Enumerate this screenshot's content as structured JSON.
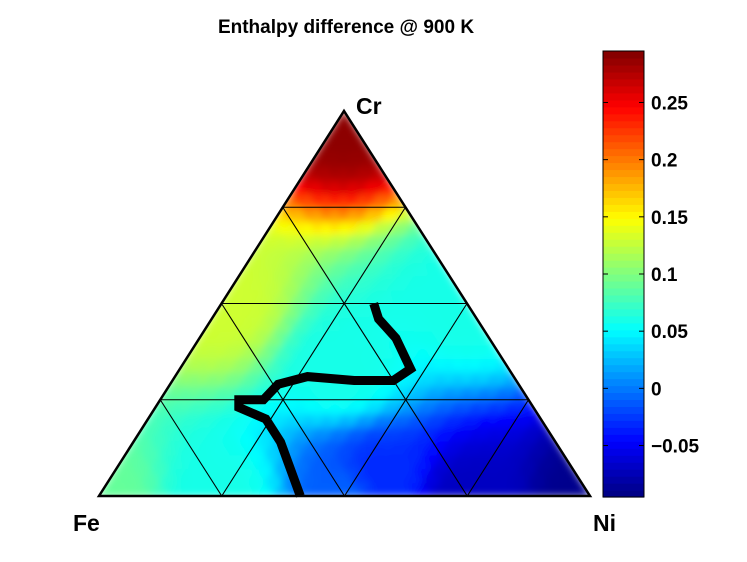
{
  "chart_data": {
    "type": "heatmap",
    "subtype": "ternary",
    "title": "Enthalpy difference @ 900 K",
    "vertices": {
      "top": "Cr",
      "left": "Fe",
      "right": "Ni"
    },
    "grid_divisions": 4,
    "colorbar": {
      "colormap": "jet",
      "range": [
        -0.095,
        0.295
      ],
      "ticks": [
        -0.05,
        0,
        0.05,
        0.1,
        0.15,
        0.2,
        0.25
      ],
      "tick_labels": [
        "−0.05",
        "0",
        "0.05",
        "0.1",
        "0.15",
        "0.2",
        "0.25"
      ],
      "legend_position": "right"
    },
    "zero_contour": [
      {
        "Fe": 0.59,
        "Ni": 0.41,
        "Cr": 0.0
      },
      {
        "Fe": 0.56,
        "Ni": 0.3,
        "Cr": 0.14
      },
      {
        "Fe": 0.56,
        "Ni": 0.24,
        "Cr": 0.2
      },
      {
        "Fe": 0.6,
        "Ni": 0.17,
        "Cr": 0.23
      },
      {
        "Fe": 0.59,
        "Ni": 0.16,
        "Cr": 0.25
      },
      {
        "Fe": 0.54,
        "Ni": 0.21,
        "Cr": 0.25
      },
      {
        "Fe": 0.49,
        "Ni": 0.22,
        "Cr": 0.29
      },
      {
        "Fe": 0.42,
        "Ni": 0.27,
        "Cr": 0.31
      },
      {
        "Fe": 0.33,
        "Ni": 0.37,
        "Cr": 0.3
      },
      {
        "Fe": 0.25,
        "Ni": 0.45,
        "Cr": 0.3
      },
      {
        "Fe": 0.2,
        "Ni": 0.47,
        "Cr": 0.33
      },
      {
        "Fe": 0.19,
        "Ni": 0.4,
        "Cr": 0.41
      },
      {
        "Fe": 0.2,
        "Ni": 0.34,
        "Cr": 0.46
      },
      {
        "Fe": 0.19,
        "Ni": 0.31,
        "Cr": 0.5
      }
    ],
    "sample_values": [
      {
        "Fe": 0.0,
        "Ni": 0.0,
        "Cr": 1.0,
        "value": 0.29
      },
      {
        "Fe": 0.0,
        "Ni": 1.0,
        "Cr": 0.0,
        "value": -0.09
      },
      {
        "Fe": 1.0,
        "Ni": 0.0,
        "Cr": 0.0,
        "value": 0.09
      },
      {
        "Fe": 0.5,
        "Ni": 0.5,
        "Cr": 0.0,
        "value": -0.01
      },
      {
        "Fe": 0.5,
        "Ni": 0.0,
        "Cr": 0.5,
        "value": 0.13
      },
      {
        "Fe": 0.0,
        "Ni": 0.5,
        "Cr": 0.5,
        "value": 0.06
      },
      {
        "Fe": 0.33,
        "Ni": 0.33,
        "Cr": 0.33,
        "value": 0.06
      },
      {
        "Fe": 0.25,
        "Ni": 0.75,
        "Cr": 0.0,
        "value": -0.07
      },
      {
        "Fe": 0.75,
        "Ni": 0.25,
        "Cr": 0.0,
        "value": 0.06
      },
      {
        "Fe": 0.4,
        "Ni": 0.55,
        "Cr": 0.05,
        "value": -0.03
      }
    ]
  }
}
